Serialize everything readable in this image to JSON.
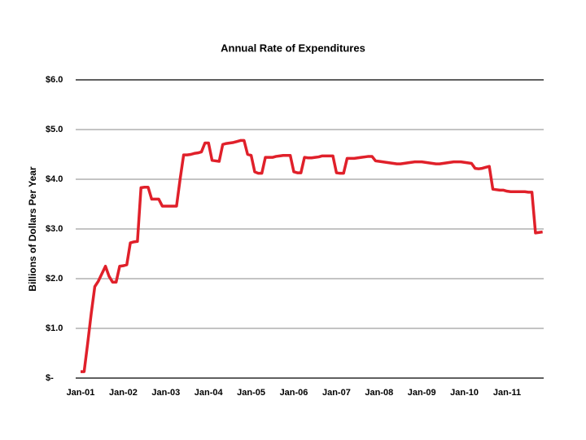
{
  "chart_data": {
    "type": "line",
    "title": "Annual Rate of Expenditures",
    "y_label": "Billions of Dollars Per Year",
    "categories": [
      "Jan-01",
      null,
      null,
      null,
      null,
      null,
      null,
      null,
      null,
      null,
      null,
      null,
      "Jan-02",
      null,
      null,
      null,
      null,
      null,
      null,
      null,
      null,
      null,
      null,
      null,
      "Jan-03",
      null,
      null,
      null,
      null,
      null,
      null,
      null,
      null,
      null,
      null,
      null,
      "Jan-04",
      null,
      null,
      null,
      null,
      null,
      null,
      null,
      null,
      null,
      null,
      null,
      "Jan-05",
      null,
      null,
      null,
      null,
      null,
      null,
      null,
      null,
      null,
      null,
      null,
      "Jan-06",
      null,
      null,
      null,
      null,
      null,
      null,
      null,
      null,
      null,
      null,
      null,
      "Jan-07",
      null,
      null,
      null,
      null,
      null,
      null,
      null,
      null,
      null,
      null,
      null,
      "Jan-08",
      null,
      null,
      null,
      null,
      null,
      null,
      null,
      null,
      null,
      null,
      null,
      "Jan-09",
      null,
      null,
      null,
      null,
      null,
      null,
      null,
      null,
      null,
      null,
      null,
      "Jan-10",
      null,
      null,
      null,
      null,
      null,
      null,
      null,
      null,
      null,
      null,
      null,
      "Jan-11",
      null,
      null,
      null,
      null,
      null,
      null,
      null,
      null,
      null,
      null
    ],
    "series": [
      {
        "color": "#e0202a",
        "values": [
          0.13,
          0.13,
          0.7,
          1.3,
          1.84,
          1.95,
          2.1,
          2.25,
          2.05,
          1.93,
          1.93,
          2.25,
          2.26,
          2.28,
          2.72,
          2.74,
          2.75,
          3.83,
          3.84,
          3.84,
          3.6,
          3.6,
          3.6,
          3.46,
          3.46,
          3.46,
          3.46,
          3.46,
          4.0,
          4.49,
          4.49,
          4.5,
          4.52,
          4.53,
          4.55,
          4.73,
          4.73,
          4.38,
          4.37,
          4.36,
          4.7,
          4.72,
          4.73,
          4.74,
          4.76,
          4.78,
          4.78,
          4.5,
          4.48,
          4.15,
          4.12,
          4.12,
          4.44,
          4.44,
          4.44,
          4.46,
          4.47,
          4.48,
          4.48,
          4.48,
          4.15,
          4.13,
          4.13,
          4.44,
          4.43,
          4.43,
          4.44,
          4.45,
          4.47,
          4.47,
          4.47,
          4.47,
          4.13,
          4.12,
          4.12,
          4.42,
          4.42,
          4.42,
          4.43,
          4.44,
          4.45,
          4.46,
          4.46,
          4.37,
          4.36,
          4.35,
          4.34,
          4.33,
          4.32,
          4.31,
          4.31,
          4.32,
          4.33,
          4.34,
          4.35,
          4.35,
          4.35,
          4.34,
          4.33,
          4.32,
          4.31,
          4.31,
          4.32,
          4.33,
          4.34,
          4.35,
          4.35,
          4.35,
          4.34,
          4.33,
          4.32,
          4.22,
          4.21,
          4.22,
          4.24,
          4.26,
          3.8,
          3.79,
          3.78,
          3.78,
          3.76,
          3.75,
          3.75,
          3.75,
          3.75,
          3.75,
          3.74,
          3.74,
          2.92,
          2.93,
          2.94
        ]
      }
    ],
    "ylim": [
      0,
      6
    ],
    "yticks": [
      {
        "value": 0,
        "label": "$-"
      },
      {
        "value": 1,
        "label": "$1.0"
      },
      {
        "value": 2,
        "label": "$2.0"
      },
      {
        "value": 3,
        "label": "$3.0"
      },
      {
        "value": 4,
        "label": "$4.0"
      },
      {
        "value": 5,
        "label": "$5.0"
      },
      {
        "value": 6,
        "label": "$6.0"
      }
    ],
    "grid": true
  }
}
